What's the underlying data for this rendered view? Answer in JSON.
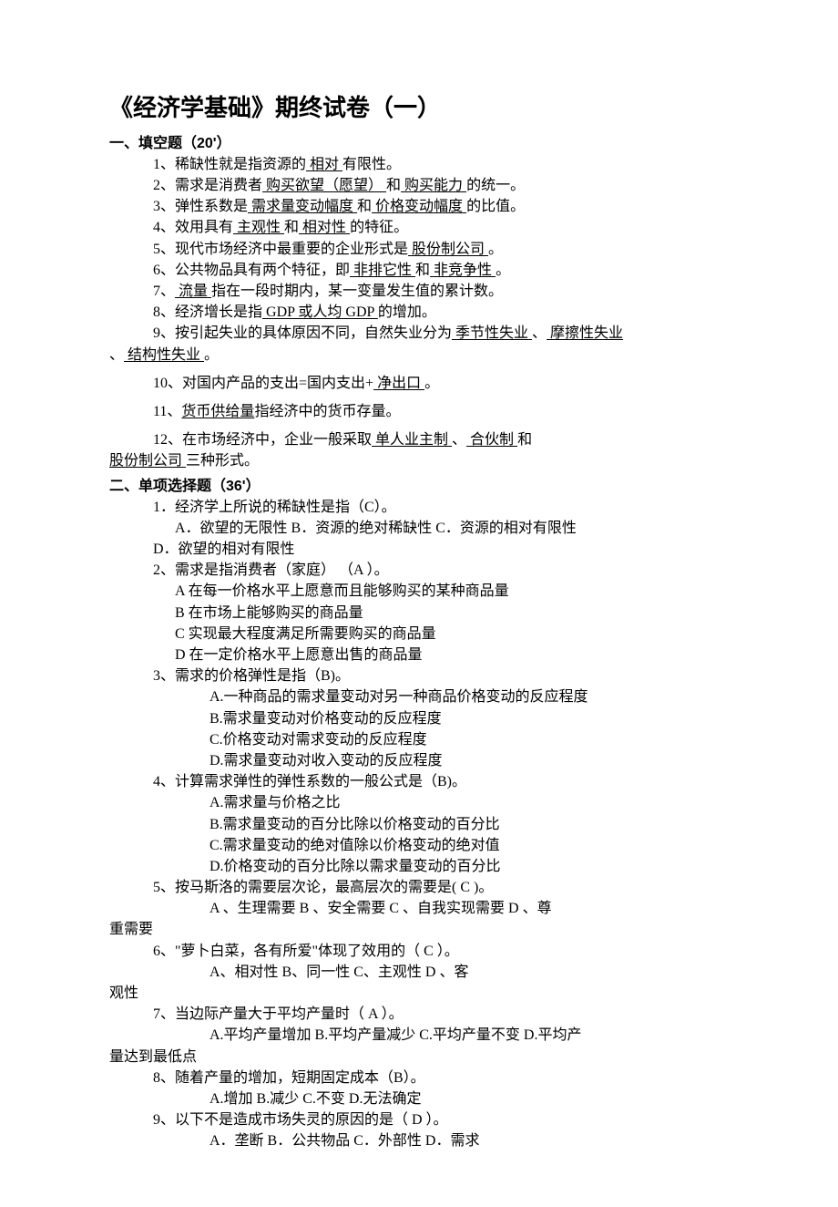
{
  "title": "《经济学基础》期终试卷（一）",
  "section1": {
    "head": "一、填空题（20'）",
    "q1_a": "1、稀缺性就是指资源的",
    "q1_u": "  相对      ",
    "q1_b": "有限性。",
    "q2_a": "2、需求是消费者",
    "q2_u1": "  购买欲望（愿望） ",
    "q2_b": " 和",
    "q2_u2": "  购买能力  ",
    "q2_c": "的统一。",
    "q3_a": "3、弹性系数是",
    "q3_u1": "     需求量变动幅度      ",
    "q3_b": "和",
    "q3_u2": "      价格变动幅度         ",
    "q3_c": "的比值。",
    "q4_a": "4、效用具有",
    "q4_u1": "  主观性        ",
    "q4_b": "和",
    "q4_u2": "      相对性      ",
    "q4_c": "的特征。",
    "q5_a": "5、现代市场经济中最重要的企业形式是",
    "q5_u": "       股份制公司        ",
    "q5_b": "。",
    "q6_a": "6、公共物品具有两个特征，即",
    "q6_u1": "      非排它性       ",
    "q6_b": "和",
    "q6_u2": "      非竞争性     ",
    "q6_c": "。",
    "q7_a": "7、",
    "q7_u": " 流量     ",
    "q7_b": "指在一段时期内，某一变量发生值的累计数。",
    "q8_a": "8、经济增长是指",
    "q8_u": "  GDP 或人均 GDP    ",
    "q8_b": "的增加。",
    "q9_a": "9、按引起失业的具体原因不同，自然失业分为",
    "q9_u1": " 季节性失业     ",
    "q9_b": "、",
    "q9_u2": "  摩擦性失业",
    "q9_u3": "    ",
    "q9_c": "、",
    "q9_u4": "  结构性失业     ",
    "q9_d": "。",
    "q10_a": "10、对国内产品的支出=国内支出+",
    "q10_u": "     净出口      ",
    "q10_b": "。",
    "q11_a": "11、",
    "q11_u": "货币供给量",
    "q11_b": "指经济中的货币存量。",
    "q12_a": "12、在市场经济中，企业一般采取",
    "q12_u1": "   单人业主制  ",
    "q12_b": "、",
    "q12_u2": "       合伙制      ",
    "q12_c": "和",
    "q12_u3": "股份制公司       ",
    "q12_d": "三种形式。"
  },
  "section2": {
    "head": "二、单项选择题（36'）",
    "q1": "1．经济学上所说的稀缺性是指（C）。",
    "q1_opts": "A．欲望的无限性 B．资源的绝对稀缺性     C．资源的相对有限性",
    "q1_opt_d": "D．欲望的相对有限性",
    "q2": " 2、需求是指消费者（家庭） （A ）。",
    "q2a": "A 在每一价格水平上愿意而且能够购买的某种商品量",
    "q2b": "B 在市场上能够购买的商品量",
    "q2c": "C 实现最大程度满足所需要购买的商品量",
    "q2d": "D 在一定价格水平上愿意出售的商品量",
    "q3": "3、需求的价格弹性是指（B)。",
    "q3a": "A.一种商品的需求量变动对另一种商品价格变动的反应程度",
    "q3b": "B.需求量变动对价格变动的反应程度",
    "q3c": "C.价格变动对需求变动的反应程度",
    "q3d": "D.需求量变动对收入变动的反应程度",
    "q4": "4、计算需求弹性的弹性系数的一般公式是（B)。",
    "q4a": "A.需求量与价格之比",
    "q4b": "B.需求量变动的百分比除以价格变动的百分比",
    "q4c": "C.需求量变动的绝对值除以价格变动的绝对值",
    "q4d": "D.价格变动的百分比除以需求量变动的百分比",
    "q5": "5、按马斯洛的需要层次论，最高层次的需要是(  C  )。",
    "q5_opts_a": "A 、生理需要        B 、安全需要     C 、自我实现需要    D 、尊",
    "q5_opts_b": "重需要",
    "q6": "6、\"萝卜白菜，各有所爱\"体现了效用的（ C    ）。",
    "q6_opts_a": "A、相对性        B、同一性       C、主观性         D 、客",
    "q6_opts_b": "观性",
    "q7": "7、当边际产量大于平均产量时（ A ）。",
    "q7_opts_a": "A.平均产量增加     B.平均产量减少     C.平均产量不变 D.平均产",
    "q7_opts_b": "量达到最低点",
    "q8": "8、随着产量的增加，短期固定成本（B）。",
    "q8_opts": "A.增加 B.减少 C.不变 D.无法确定",
    "q9": "9、以下不是造成市场失灵的原因的是（   D    ）。",
    "q9_opts": "A．垄断         B．公共物品       C．外部性        D．需求"
  }
}
